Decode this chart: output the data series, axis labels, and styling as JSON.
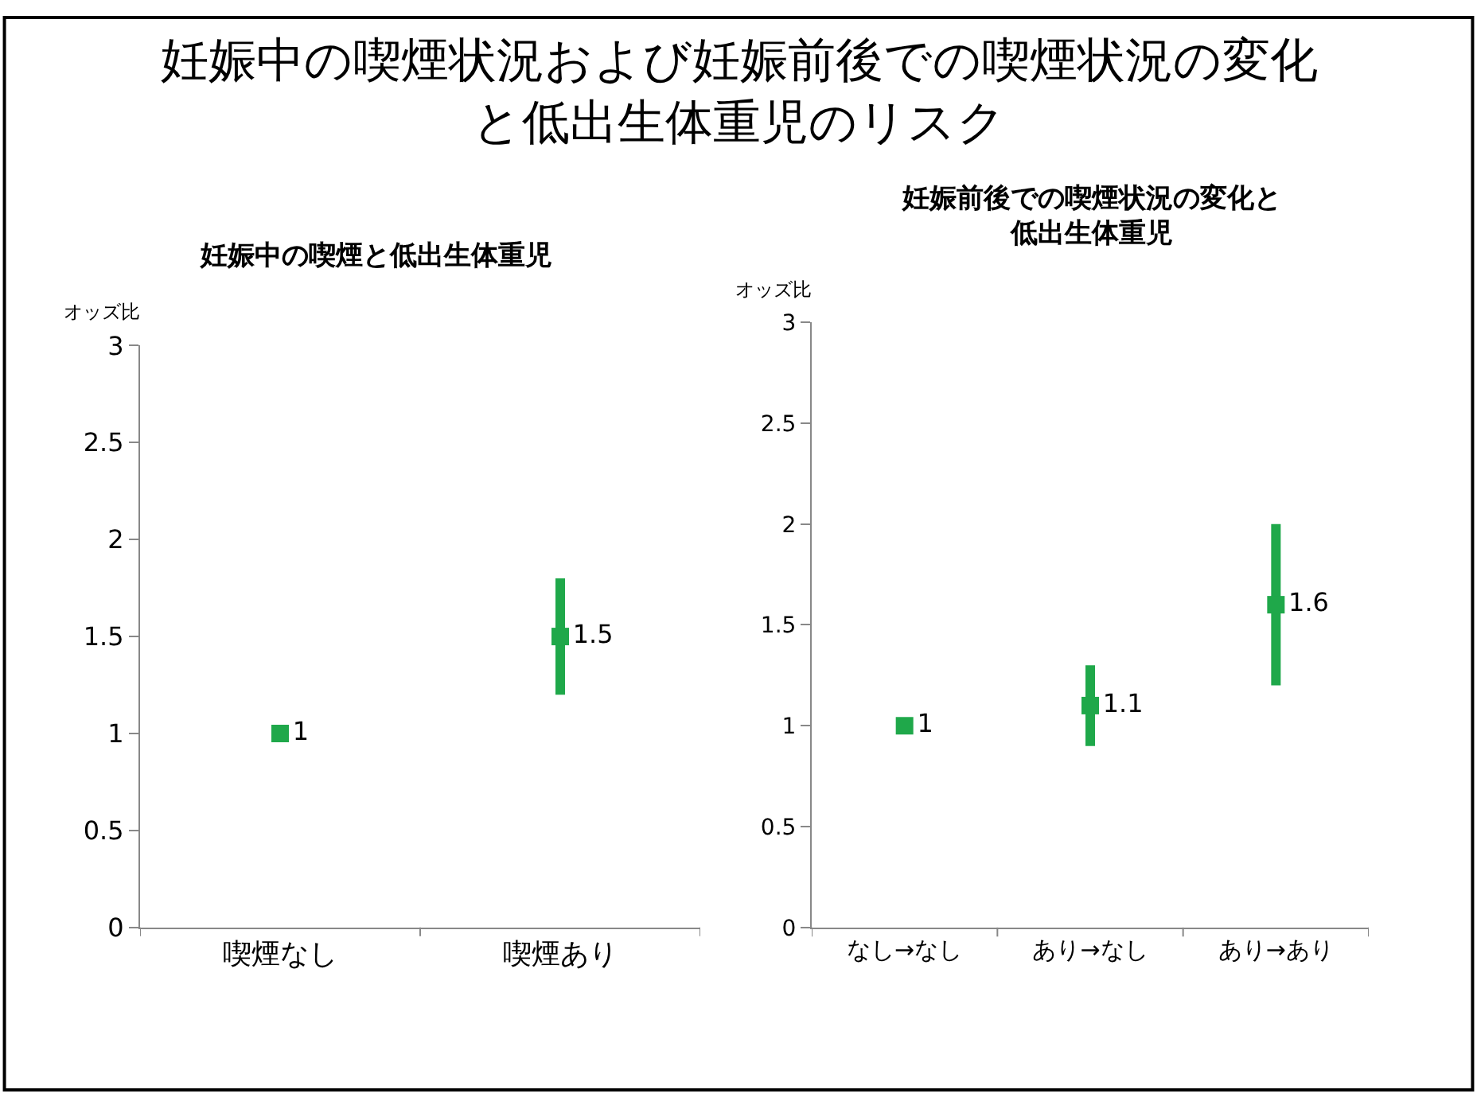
{
  "chart_data": [
    {
      "type": "other",
      "title": "妊娠中の喫煙状況および妊娠前後での喫煙状況の変化と低出生体重児のリスク"
    },
    {
      "type": "scatter",
      "title": "妊娠中の喫煙と低出生体重児",
      "ylabel": "オッズ比",
      "categories": [
        "喫煙なし",
        "喫煙あり"
      ],
      "series": [
        {
          "color": "#1fa84a",
          "values": [
            1,
            1.5
          ],
          "errors": [
            null,
            [
              1.2,
              1.8
            ]
          ]
        }
      ],
      "ylim": [
        0,
        3
      ],
      "yticks": [
        0,
        0.5,
        1,
        1.5,
        2,
        2.5,
        3
      ],
      "marker": "square",
      "data_labels": true
    },
    {
      "type": "scatter",
      "title": "妊娠前後での喫煙状況の変化と低出生体重児",
      "ylabel": "オッズ比",
      "categories": [
        "なし→なし",
        "あり→なし",
        "あり→あり"
      ],
      "series": [
        {
          "color": "#1fa84a",
          "values": [
            1,
            1.1,
            1.6
          ],
          "errors": [
            null,
            [
              0.9,
              1.3
            ],
            [
              1.2,
              2.0
            ]
          ]
        }
      ],
      "ylim": [
        0,
        3
      ],
      "yticks": [
        0,
        0.5,
        1,
        1.5,
        2,
        2.5,
        3
      ],
      "marker": "square",
      "data_labels": true
    }
  ]
}
